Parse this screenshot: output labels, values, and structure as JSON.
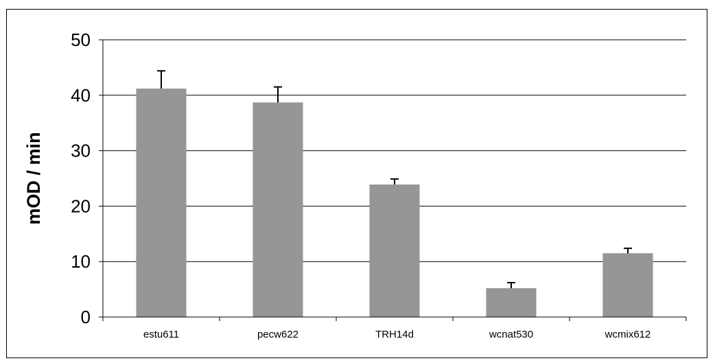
{
  "chart_data": {
    "type": "bar",
    "title": "",
    "xlabel": "",
    "ylabel": "mOD / min",
    "categories": [
      "estu611",
      "pecw622",
      "TRH14d",
      "wcnat530",
      "wcmix612"
    ],
    "values": [
      41.2,
      38.7,
      23.9,
      5.2,
      11.5
    ],
    "error_plus": [
      3.2,
      2.8,
      1.0,
      1.0,
      0.9
    ],
    "ylim": [
      0,
      50
    ],
    "yticks": [
      0,
      10,
      20,
      30,
      40,
      50
    ],
    "ytick_labels": [
      "0",
      "10",
      "20",
      "30",
      "40",
      "50"
    ],
    "grid": true,
    "legend": "none",
    "colors": {
      "bar": "#969696",
      "grid": "#000000",
      "axis": "#000000",
      "error": "#000000"
    }
  }
}
